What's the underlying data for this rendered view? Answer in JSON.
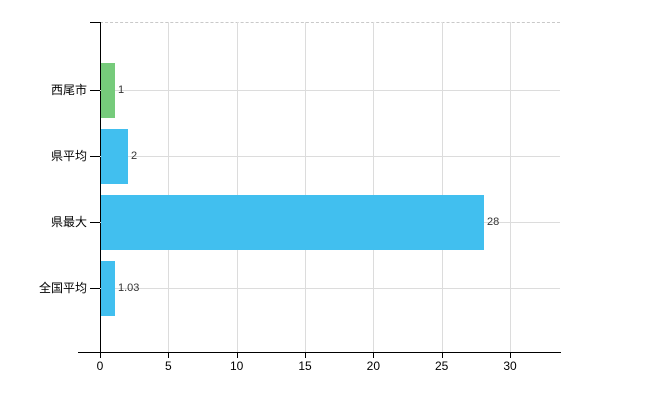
{
  "chart_data": {
    "type": "bar",
    "orientation": "horizontal",
    "title": "",
    "xlabel": "",
    "ylabel": "",
    "categories": [
      "西尾市",
      "県平均",
      "県最大",
      "全国平均"
    ],
    "values": [
      1,
      2,
      28,
      1.03
    ],
    "bars": [
      {
        "label": "西尾市",
        "value": 1,
        "display_value": "1",
        "color": "#76cb7b"
      },
      {
        "label": "県平均",
        "value": 2,
        "display_value": "2",
        "color": "#41bfef"
      },
      {
        "label": "県最大",
        "value": 28,
        "display_value": "28",
        "color": "#41bfef"
      },
      {
        "label": "全国平均",
        "value": 1.03,
        "display_value": "1.03",
        "color": "#41bfef"
      }
    ],
    "x_ticks": [
      0,
      5,
      10,
      15,
      20,
      25,
      30
    ],
    "xlim": [
      0,
      33.7
    ],
    "grid": true,
    "legend": false,
    "colors": {
      "highlight_bar": "#76cb7b",
      "default_bar": "#41bfef",
      "gridline": "#dcdcdc",
      "plot_top_border": "#c9c9c9",
      "axis": "#000000",
      "tick_text": "#000000",
      "value_text": "#333333",
      "background": "#ffffff"
    }
  }
}
